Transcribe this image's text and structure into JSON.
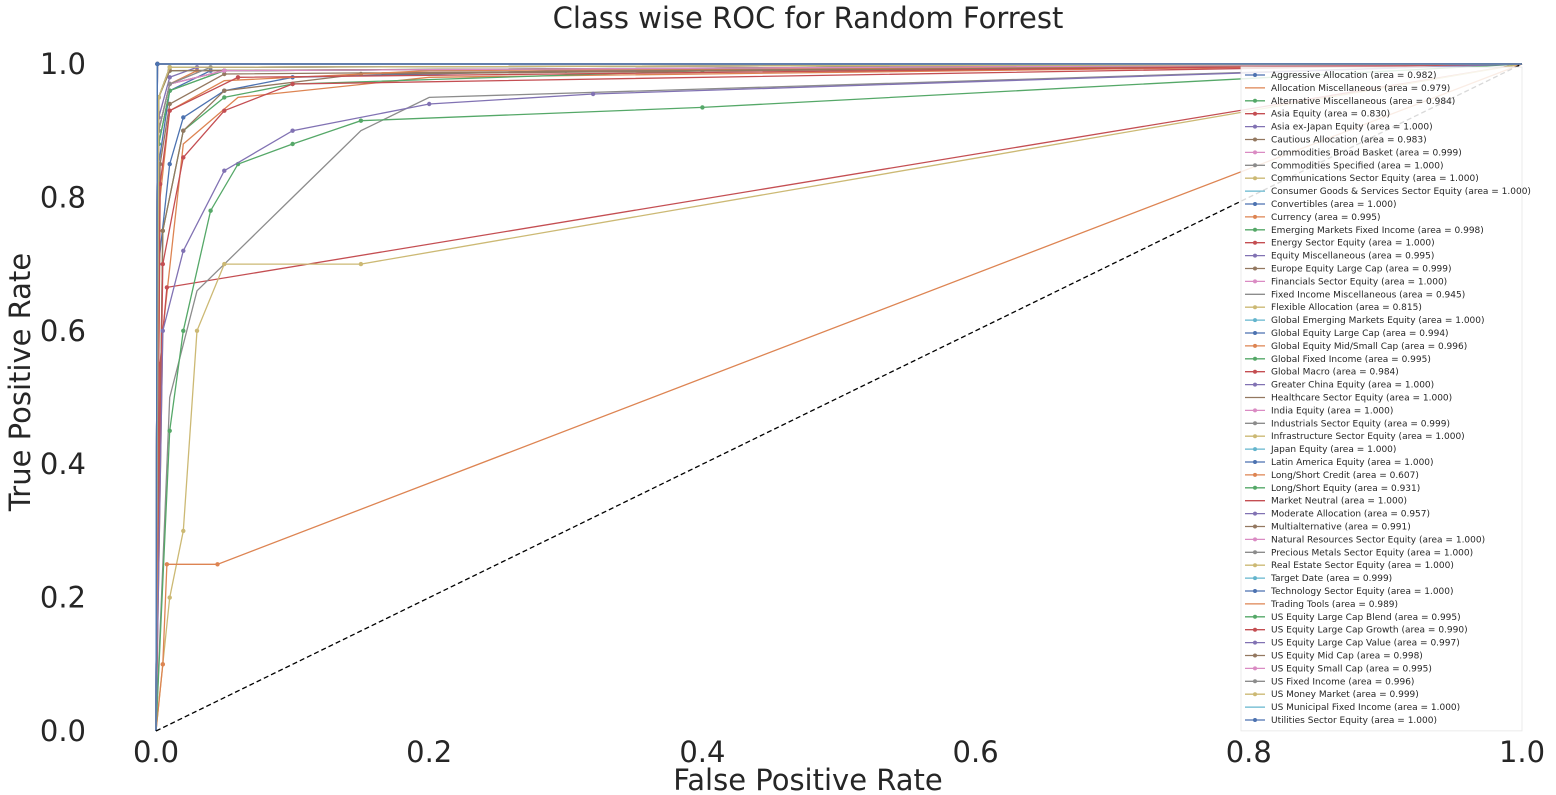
{
  "chart_data": {
    "type": "line",
    "title": "Class wise ROC for Random Forrest",
    "xlabel": "False Positive Rate",
    "ylabel": "True Positive Rate",
    "xlim": [
      0.0,
      1.0
    ],
    "ylim": [
      0.0,
      1.0
    ],
    "xticks": [
      "0.0",
      "0.2",
      "0.4",
      "0.6",
      "0.8",
      "1.0"
    ],
    "yticks": [
      "0.0",
      "0.2",
      "0.4",
      "0.6",
      "0.8",
      "1.0"
    ],
    "grid": false,
    "legend_position": "lower-right",
    "chance_line": {
      "x": [
        0,
        1
      ],
      "y": [
        0,
        1
      ],
      "style": "dashed",
      "color": "#000000"
    },
    "series": [
      {
        "name": "Aggressive Allocation (area = 0.982)",
        "color": "#4c72b0",
        "marker": "x",
        "x": [
          0,
          0.002,
          0.01,
          0.02,
          0.05,
          0.1,
          0.3,
          1
        ],
        "y": [
          0,
          0.7,
          0.85,
          0.92,
          0.96,
          0.98,
          0.99,
          1
        ]
      },
      {
        "name": "Allocation Miscellaneous (area = 0.979)",
        "color": "#dd8452",
        "marker": "none",
        "x": [
          0,
          0.005,
          0.02,
          0.06,
          0.2,
          1
        ],
        "y": [
          0,
          0.6,
          0.88,
          0.95,
          0.98,
          1
        ]
      },
      {
        "name": "Alternative Miscellaneous (area = 0.984)",
        "color": "#55a868",
        "marker": "o",
        "x": [
          0,
          0.005,
          0.02,
          0.05,
          0.1,
          0.4,
          1
        ],
        "y": [
          0,
          0.75,
          0.9,
          0.95,
          0.97,
          0.99,
          1
        ]
      },
      {
        "name": "Asia Equity (area = 0.830)",
        "color": "#c44e52",
        "marker": "v",
        "x": [
          0,
          0.003,
          0.008,
          1
        ],
        "y": [
          0,
          0.55,
          0.665,
          1
        ]
      },
      {
        "name": "Asia ex-Japan Equity (area = 1.000)",
        "color": "#8172b3",
        "marker": "^",
        "x": [
          0,
          0.001,
          1
        ],
        "y": [
          0,
          1,
          1
        ]
      },
      {
        "name": "Cautious Allocation (area = 0.983)",
        "color": "#937860",
        "marker": "<",
        "x": [
          0,
          0.005,
          0.02,
          0.05,
          0.15,
          1
        ],
        "y": [
          0,
          0.75,
          0.9,
          0.96,
          0.985,
          1
        ]
      },
      {
        "name": "Commodities Broad Basket (area = 0.999)",
        "color": "#da8bc3",
        "marker": ">",
        "x": [
          0,
          0.002,
          0.01,
          1
        ],
        "y": [
          0,
          0.95,
          0.995,
          1
        ]
      },
      {
        "name": "Commodities Specified (area = 1.000)",
        "color": "#8c8c8c",
        "marker": "s",
        "x": [
          0,
          0.001,
          1
        ],
        "y": [
          0,
          1,
          1
        ]
      },
      {
        "name": "Communications Sector Equity (area = 1.000)",
        "color": "#ccb974",
        "marker": "p",
        "x": [
          0,
          0.001,
          1
        ],
        "y": [
          0,
          1,
          1
        ]
      },
      {
        "name": "Consumer Goods & Services Sector Equity (area = 1.000)",
        "color": "#64b5cd",
        "marker": "none",
        "x": [
          0,
          0.001,
          1
        ],
        "y": [
          0,
          1,
          1
        ]
      },
      {
        "name": "Convertibles (area = 1.000)",
        "color": "#4c72b0",
        "marker": "o",
        "x": [
          0,
          0.001,
          1
        ],
        "y": [
          0,
          1,
          1
        ]
      },
      {
        "name": "Currency (area = 0.995)",
        "color": "#dd8452",
        "marker": "v",
        "x": [
          0,
          0.002,
          0.01,
          0.05,
          1
        ],
        "y": [
          0,
          0.9,
          0.97,
          0.99,
          1
        ]
      },
      {
        "name": "Emerging Markets Fixed Income (area = 0.998)",
        "color": "#55a868",
        "marker": "^",
        "x": [
          0,
          0.002,
          0.01,
          1
        ],
        "y": [
          0,
          0.95,
          0.99,
          1
        ]
      },
      {
        "name": "Energy Sector Equity (area = 1.000)",
        "color": "#c44e52",
        "marker": "<",
        "x": [
          0,
          0.001,
          1
        ],
        "y": [
          0,
          1,
          1
        ]
      },
      {
        "name": "Equity Miscellaneous (area = 0.995)",
        "color": "#8172b3",
        "marker": ">",
        "x": [
          0,
          0.002,
          0.01,
          0.05,
          1
        ],
        "y": [
          0,
          0.9,
          0.97,
          0.99,
          1
        ]
      },
      {
        "name": "Europe Equity Large Cap (area = 0.999)",
        "color": "#937860",
        "marker": "s",
        "x": [
          0,
          0.002,
          0.01,
          1
        ],
        "y": [
          0,
          0.95,
          0.995,
          1
        ]
      },
      {
        "name": "Financials Sector Equity (area = 1.000)",
        "color": "#da8bc3",
        "marker": "p",
        "x": [
          0,
          0.001,
          1
        ],
        "y": [
          0,
          1,
          1
        ]
      },
      {
        "name": "Fixed Income Miscellaneous (area = 0.945)",
        "color": "#8c8c8c",
        "marker": "none",
        "x": [
          0,
          0.01,
          0.03,
          0.06,
          0.1,
          0.15,
          0.2,
          1
        ],
        "y": [
          0,
          0.5,
          0.66,
          0.72,
          0.8,
          0.9,
          0.95,
          1
        ]
      },
      {
        "name": "Flexible Allocation (area = 0.815)",
        "color": "#ccb974",
        "marker": "o",
        "x": [
          0,
          0.005,
          0.01,
          0.02,
          0.03,
          0.05,
          0.15,
          1
        ],
        "y": [
          0,
          0.1,
          0.2,
          0.3,
          0.6,
          0.7,
          0.7,
          1
        ]
      },
      {
        "name": "Global Emerging Markets Equity (area = 1.000)",
        "color": "#64b5cd",
        "marker": "v",
        "x": [
          0,
          0.001,
          1
        ],
        "y": [
          0,
          1,
          1
        ]
      },
      {
        "name": "Global Equity Large Cap (area = 0.994)",
        "color": "#4c72b0",
        "marker": "^",
        "x": [
          0,
          0.002,
          0.01,
          0.04,
          1
        ],
        "y": [
          0,
          0.85,
          0.96,
          0.99,
          1
        ]
      },
      {
        "name": "Global Equity Mid/Small Cap (area = 0.996)",
        "color": "#dd8452",
        "marker": "<",
        "x": [
          0,
          0.002,
          0.01,
          0.03,
          1
        ],
        "y": [
          0,
          0.9,
          0.97,
          0.99,
          1
        ]
      },
      {
        "name": "Global Fixed Income (area = 0.995)",
        "color": "#55a868",
        "marker": ">",
        "x": [
          0,
          0.002,
          0.01,
          0.05,
          1
        ],
        "y": [
          0,
          0.88,
          0.96,
          0.99,
          1
        ]
      },
      {
        "name": "Global Macro (area = 0.984)",
        "color": "#c44e52",
        "marker": "s",
        "x": [
          0,
          0.005,
          0.02,
          0.05,
          0.1,
          1
        ],
        "y": [
          0,
          0.7,
          0.86,
          0.93,
          0.97,
          1
        ]
      },
      {
        "name": "Greater China Equity (area = 1.000)",
        "color": "#8172b3",
        "marker": "p",
        "x": [
          0,
          0.001,
          1
        ],
        "y": [
          0,
          1,
          1
        ]
      },
      {
        "name": "Healthcare Sector Equity (area = 1.000)",
        "color": "#937860",
        "marker": "none",
        "x": [
          0,
          0.001,
          1
        ],
        "y": [
          0,
          1,
          1
        ]
      },
      {
        "name": "India Equity (area = 1.000)",
        "color": "#da8bc3",
        "marker": "o",
        "x": [
          0,
          0.001,
          1
        ],
        "y": [
          0,
          1,
          1
        ]
      },
      {
        "name": "Industrials Sector Equity (area = 0.999)",
        "color": "#8c8c8c",
        "marker": "v",
        "x": [
          0,
          0.002,
          0.01,
          1
        ],
        "y": [
          0,
          0.95,
          0.995,
          1
        ]
      },
      {
        "name": "Infrastructure Sector Equity (area = 1.000)",
        "color": "#ccb974",
        "marker": "^",
        "x": [
          0,
          0.001,
          1
        ],
        "y": [
          0,
          1,
          1
        ]
      },
      {
        "name": "Japan Equity (area = 1.000)",
        "color": "#64b5cd",
        "marker": "<",
        "x": [
          0,
          0.001,
          1
        ],
        "y": [
          0,
          1,
          1
        ]
      },
      {
        "name": "Latin America Equity (area = 1.000)",
        "color": "#4c72b0",
        "marker": ">",
        "x": [
          0,
          0.001,
          1
        ],
        "y": [
          0,
          1,
          1
        ]
      },
      {
        "name": "Long/Short Credit (area = 0.607)",
        "color": "#dd8452",
        "marker": "s",
        "x": [
          0,
          0.005,
          0.008,
          0.045,
          1
        ],
        "y": [
          0,
          0.1,
          0.25,
          0.25,
          1
        ]
      },
      {
        "name": "Long/Short Equity (area = 0.931)",
        "color": "#55a868",
        "marker": "p",
        "x": [
          0,
          0.01,
          0.02,
          0.04,
          0.06,
          0.1,
          0.15,
          0.4,
          1
        ],
        "y": [
          0,
          0.45,
          0.6,
          0.78,
          0.85,
          0.88,
          0.915,
          0.935,
          1
        ]
      },
      {
        "name": "Market Neutral (area = 1.000)",
        "color": "#c44e52",
        "marker": "none",
        "x": [
          0,
          0.001,
          1
        ],
        "y": [
          0,
          1,
          1
        ]
      },
      {
        "name": "Moderate Allocation (area = 0.957)",
        "color": "#8172b3",
        "marker": "o",
        "x": [
          0,
          0.005,
          0.02,
          0.05,
          0.1,
          0.2,
          0.32,
          1
        ],
        "y": [
          0,
          0.6,
          0.72,
          0.84,
          0.9,
          0.94,
          0.955,
          1
        ]
      },
      {
        "name": "Multialternative (area = 0.991)",
        "color": "#937860",
        "marker": "v",
        "x": [
          0,
          0.003,
          0.01,
          0.05,
          1
        ],
        "y": [
          0,
          0.85,
          0.94,
          0.985,
          1
        ]
      },
      {
        "name": "Natural Resources Sector Equity (area = 1.000)",
        "color": "#da8bc3",
        "marker": "^",
        "x": [
          0,
          0.001,
          1
        ],
        "y": [
          0,
          1,
          1
        ]
      },
      {
        "name": "Precious Metals Sector Equity (area = 1.000)",
        "color": "#8c8c8c",
        "marker": "<",
        "x": [
          0,
          0.001,
          1
        ],
        "y": [
          0,
          1,
          1
        ]
      },
      {
        "name": "Real Estate Sector Equity (area = 1.000)",
        "color": "#ccb974",
        "marker": ">",
        "x": [
          0,
          0.001,
          1
        ],
        "y": [
          0,
          1,
          1
        ]
      },
      {
        "name": "Target Date (area = 0.999)",
        "color": "#64b5cd",
        "marker": "s",
        "x": [
          0,
          0.002,
          0.01,
          1
        ],
        "y": [
          0,
          0.95,
          0.995,
          1
        ]
      },
      {
        "name": "Technology Sector Equity (area = 1.000)",
        "color": "#4c72b0",
        "marker": "p",
        "x": [
          0,
          0.001,
          1
        ],
        "y": [
          0,
          1,
          1
        ]
      },
      {
        "name": "Trading Tools (area = 0.989)",
        "color": "#dd8452",
        "marker": "none",
        "x": [
          0,
          0.003,
          0.01,
          0.05,
          0.2,
          1
        ],
        "y": [
          0,
          0.8,
          0.93,
          0.975,
          0.99,
          1
        ]
      },
      {
        "name": "US Equity Large Cap Blend (area = 0.995)",
        "color": "#55a868",
        "marker": "o",
        "x": [
          0,
          0.002,
          0.01,
          0.05,
          1
        ],
        "y": [
          0,
          0.88,
          0.96,
          0.99,
          1
        ]
      },
      {
        "name": "US Equity Large Cap Growth (area = 0.990)",
        "color": "#c44e52",
        "marker": "v",
        "x": [
          0,
          0.003,
          0.01,
          0.06,
          1
        ],
        "y": [
          0,
          0.82,
          0.93,
          0.98,
          1
        ]
      },
      {
        "name": "US Equity Large Cap Value (area = 0.997)",
        "color": "#8172b3",
        "marker": "^",
        "x": [
          0,
          0.002,
          0.01,
          0.03,
          1
        ],
        "y": [
          0,
          0.92,
          0.98,
          0.995,
          1
        ]
      },
      {
        "name": "US Equity Mid Cap (area = 0.998)",
        "color": "#937860",
        "marker": "<",
        "x": [
          0,
          0.002,
          0.01,
          1
        ],
        "y": [
          0,
          0.95,
          0.99,
          1
        ]
      },
      {
        "name": "US Equity Small Cap (area = 0.995)",
        "color": "#da8bc3",
        "marker": ">",
        "x": [
          0,
          0.002,
          0.01,
          0.05,
          1
        ],
        "y": [
          0,
          0.9,
          0.97,
          0.99,
          1
        ]
      },
      {
        "name": "US Fixed Income (area = 0.996)",
        "color": "#8c8c8c",
        "marker": "s",
        "x": [
          0,
          0.002,
          0.01,
          0.04,
          1
        ],
        "y": [
          0,
          0.9,
          0.97,
          0.995,
          1
        ]
      },
      {
        "name": "US Money Market (area = 0.999)",
        "color": "#ccb974",
        "marker": "p",
        "x": [
          0,
          0.002,
          0.01,
          1
        ],
        "y": [
          0,
          0.95,
          0.995,
          1
        ]
      },
      {
        "name": "US Municipal Fixed Income (area = 1.000)",
        "color": "#64b5cd",
        "marker": "none",
        "x": [
          0,
          0.001,
          1
        ],
        "y": [
          0,
          1,
          1
        ]
      },
      {
        "name": "Utilities Sector Equity (area = 1.000)",
        "color": "#4c72b0",
        "marker": "o",
        "x": [
          0,
          0.001,
          1
        ],
        "y": [
          0,
          1,
          1
        ]
      }
    ]
  }
}
